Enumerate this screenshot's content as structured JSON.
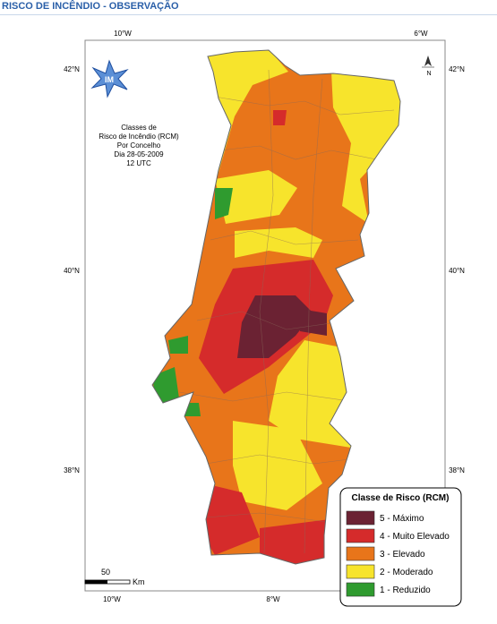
{
  "header": {
    "title": "RISCO DE INCÊNDIO - OBSERVAÇÃO"
  },
  "map": {
    "top_labels": [
      "10°W",
      "6°W"
    ],
    "bottom_labels": [
      "10°W",
      "8°W"
    ],
    "left_labels": [
      "42°N",
      "40°N",
      "38°N"
    ],
    "right_labels": [
      "42°N",
      "40°N",
      "38°N"
    ],
    "logo": "IM",
    "north": "N",
    "info": [
      "Classes de",
      "Risco de Incêndio (RCM)",
      "Por Concelho",
      "Dia 28-05-2009",
      "12 UTC"
    ],
    "scale": {
      "value": "50",
      "unit": "Km"
    }
  },
  "legend": {
    "title": "Classe de Risco (RCM)",
    "items": [
      {
        "label": "5 - Máximo",
        "color": "#6b2233"
      },
      {
        "label": "4 - Muito Elevado",
        "color": "#d52b2b"
      },
      {
        "label": "3 - Elevado",
        "color": "#e8751a"
      },
      {
        "label": "2 - Moderado",
        "color": "#f7e42c"
      },
      {
        "label": "1 - Reduzido",
        "color": "#2f9b2f"
      }
    ]
  }
}
